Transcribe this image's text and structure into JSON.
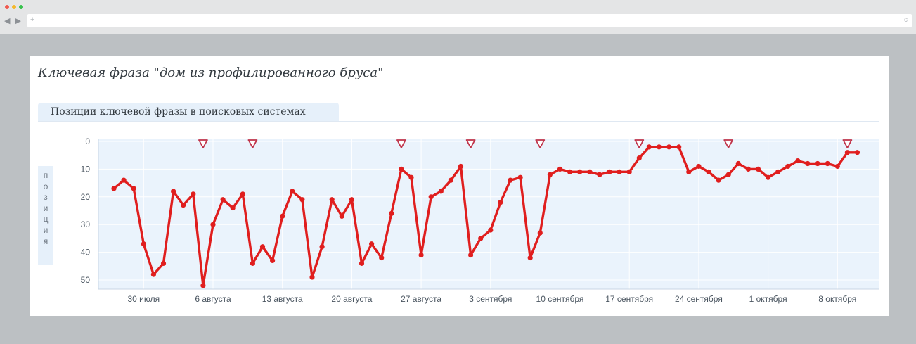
{
  "browser": {
    "nav_glyphs": "◀ ▶",
    "url_plus": "+",
    "reload_glyph": "c",
    "dot_colors": [
      "#f05a50",
      "#f4b82d",
      "#38c14d"
    ]
  },
  "page": {
    "title": "Ключевая фраза \"дом из профилированного бруса\"",
    "tab_label": "Позиции ключевой фразы в поисковых системах"
  },
  "chart_data": {
    "type": "line",
    "ylabel": "позиция",
    "ylim": [
      0,
      53
    ],
    "y_inverted": true,
    "y_ticks": [
      0,
      10,
      20,
      30,
      40,
      50
    ],
    "x_ticks": [
      {
        "day": 3,
        "label": "30 июля"
      },
      {
        "day": 10,
        "label": "6 августа"
      },
      {
        "day": 17,
        "label": "13 августа"
      },
      {
        "day": 24,
        "label": "20 августа"
      },
      {
        "day": 31,
        "label": "27 августа"
      },
      {
        "day": 38,
        "label": "3 сентября"
      },
      {
        "day": 45,
        "label": "10 сентября"
      },
      {
        "day": 52,
        "label": "17 сентября"
      },
      {
        "day": 59,
        "label": "24 сентября"
      },
      {
        "day": 66,
        "label": "1 октября"
      },
      {
        "day": 73,
        "label": "8 октября"
      }
    ],
    "xlim": [
      -1,
      77
    ],
    "series": [
      {
        "color": "#e01e1e",
        "points": [
          [
            0,
            17
          ],
          [
            1,
            14
          ],
          [
            2,
            17
          ],
          [
            3,
            37
          ],
          [
            4,
            48
          ],
          [
            5,
            44
          ],
          [
            6,
            18
          ],
          [
            7,
            23
          ],
          [
            8,
            19
          ],
          [
            9,
            52
          ],
          [
            10,
            30
          ],
          [
            11,
            21
          ],
          [
            12,
            24
          ],
          [
            13,
            19
          ],
          [
            14,
            44
          ],
          [
            15,
            38
          ],
          [
            16,
            43
          ],
          [
            17,
            27
          ],
          [
            18,
            18
          ],
          [
            19,
            21
          ],
          [
            20,
            49
          ],
          [
            21,
            38
          ],
          [
            22,
            21
          ],
          [
            23,
            27
          ],
          [
            24,
            21
          ],
          [
            25,
            44
          ],
          [
            26,
            37
          ],
          [
            27,
            42
          ],
          [
            28,
            26
          ],
          [
            29,
            10
          ],
          [
            30,
            13
          ],
          [
            31,
            41
          ],
          [
            32,
            20
          ],
          [
            33,
            18
          ],
          [
            34,
            14
          ],
          [
            35,
            9
          ],
          [
            36,
            41
          ],
          [
            37,
            35
          ],
          [
            38,
            32
          ],
          [
            39,
            22
          ],
          [
            40,
            14
          ],
          [
            41,
            13
          ],
          [
            42,
            42
          ],
          [
            43,
            33
          ],
          [
            44,
            12
          ],
          [
            45,
            10
          ],
          [
            46,
            11
          ],
          [
            47,
            11
          ],
          [
            48,
            11
          ],
          [
            49,
            12
          ],
          [
            50,
            11
          ],
          [
            51,
            11
          ],
          [
            52,
            11
          ],
          [
            53,
            6
          ],
          [
            54,
            2
          ],
          [
            55,
            2
          ],
          [
            56,
            2
          ],
          [
            57,
            2
          ],
          [
            58,
            11
          ],
          [
            59,
            9
          ],
          [
            60,
            11
          ],
          [
            61,
            14
          ],
          [
            62,
            12
          ],
          [
            63,
            8
          ],
          [
            64,
            10
          ],
          [
            65,
            10
          ],
          [
            66,
            13
          ],
          [
            67,
            11
          ],
          [
            68,
            9
          ],
          [
            69,
            7
          ],
          [
            70,
            8
          ],
          [
            71,
            8
          ],
          [
            72,
            8
          ],
          [
            73,
            9
          ],
          [
            74,
            4
          ],
          [
            75,
            4
          ]
        ]
      }
    ],
    "markers": {
      "symbol": "triangle-down",
      "color": "#c0344a",
      "days": [
        9,
        14,
        29,
        36,
        43,
        53,
        62,
        74
      ]
    },
    "plot_bg": "#eaf3fc",
    "grid_color": "#ffffff"
  }
}
